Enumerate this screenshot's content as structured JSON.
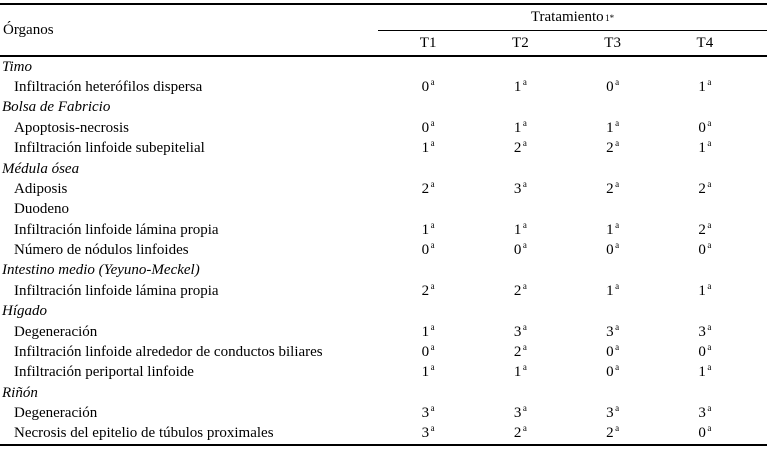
{
  "table": {
    "header": {
      "organ_label": "Órganos",
      "treatment_label": "Tratamiento",
      "treatment_sup": "1*",
      "columns": [
        "T1",
        "T2",
        "T3",
        "T4"
      ]
    },
    "value_superscript": "a",
    "rows": [
      {
        "type": "section",
        "label": "Timo"
      },
      {
        "type": "item",
        "label": "Infiltración heterófilos dispersa",
        "values": [
          "0",
          "1",
          "0",
          "1"
        ]
      },
      {
        "type": "section",
        "label": "Bolsa de Fabricio"
      },
      {
        "type": "item",
        "label": "Apoptosis-necrosis",
        "values": [
          "0",
          "1",
          "1",
          "0"
        ]
      },
      {
        "type": "item",
        "label": "Infiltración linfoide subepitelial",
        "values": [
          "1",
          "2",
          "2",
          "1"
        ]
      },
      {
        "type": "section",
        "label": "Médula ósea"
      },
      {
        "type": "item",
        "label": "Adiposis",
        "values": [
          "2",
          "3",
          "2",
          "2"
        ]
      },
      {
        "type": "item",
        "label": "Duodeno"
      },
      {
        "type": "item",
        "label": "Infiltración linfoide lámina propia",
        "values": [
          "1",
          "1",
          "1",
          "2"
        ]
      },
      {
        "type": "item",
        "label": "Número de nódulos linfoides",
        "values": [
          "0",
          "0",
          "0",
          "0"
        ]
      },
      {
        "type": "section",
        "label": "Intestino medio (Yeyuno-Meckel)"
      },
      {
        "type": "item",
        "label": "Infiltración linfoide lámina propia",
        "values": [
          "2",
          "2",
          "1",
          "1"
        ]
      },
      {
        "type": "section",
        "label": "Hígado"
      },
      {
        "type": "item",
        "label": "Degeneración",
        "values": [
          "1",
          "3",
          "3",
          "3"
        ]
      },
      {
        "type": "item",
        "label": "Infiltración linfoide alrededor de conductos biliares",
        "values": [
          "0",
          "2",
          "0",
          "0"
        ]
      },
      {
        "type": "item",
        "label": "Infiltración periportal linfoide",
        "values": [
          "1",
          "1",
          "0",
          "1"
        ]
      },
      {
        "type": "section",
        "label": "Riñón"
      },
      {
        "type": "item",
        "label": "Degeneración",
        "values": [
          "3",
          "3",
          "3",
          "3"
        ]
      },
      {
        "type": "item",
        "label": "Necrosis del epitelio de túbulos proximales",
        "values": [
          "3",
          "2",
          "2",
          "0"
        ]
      }
    ]
  }
}
